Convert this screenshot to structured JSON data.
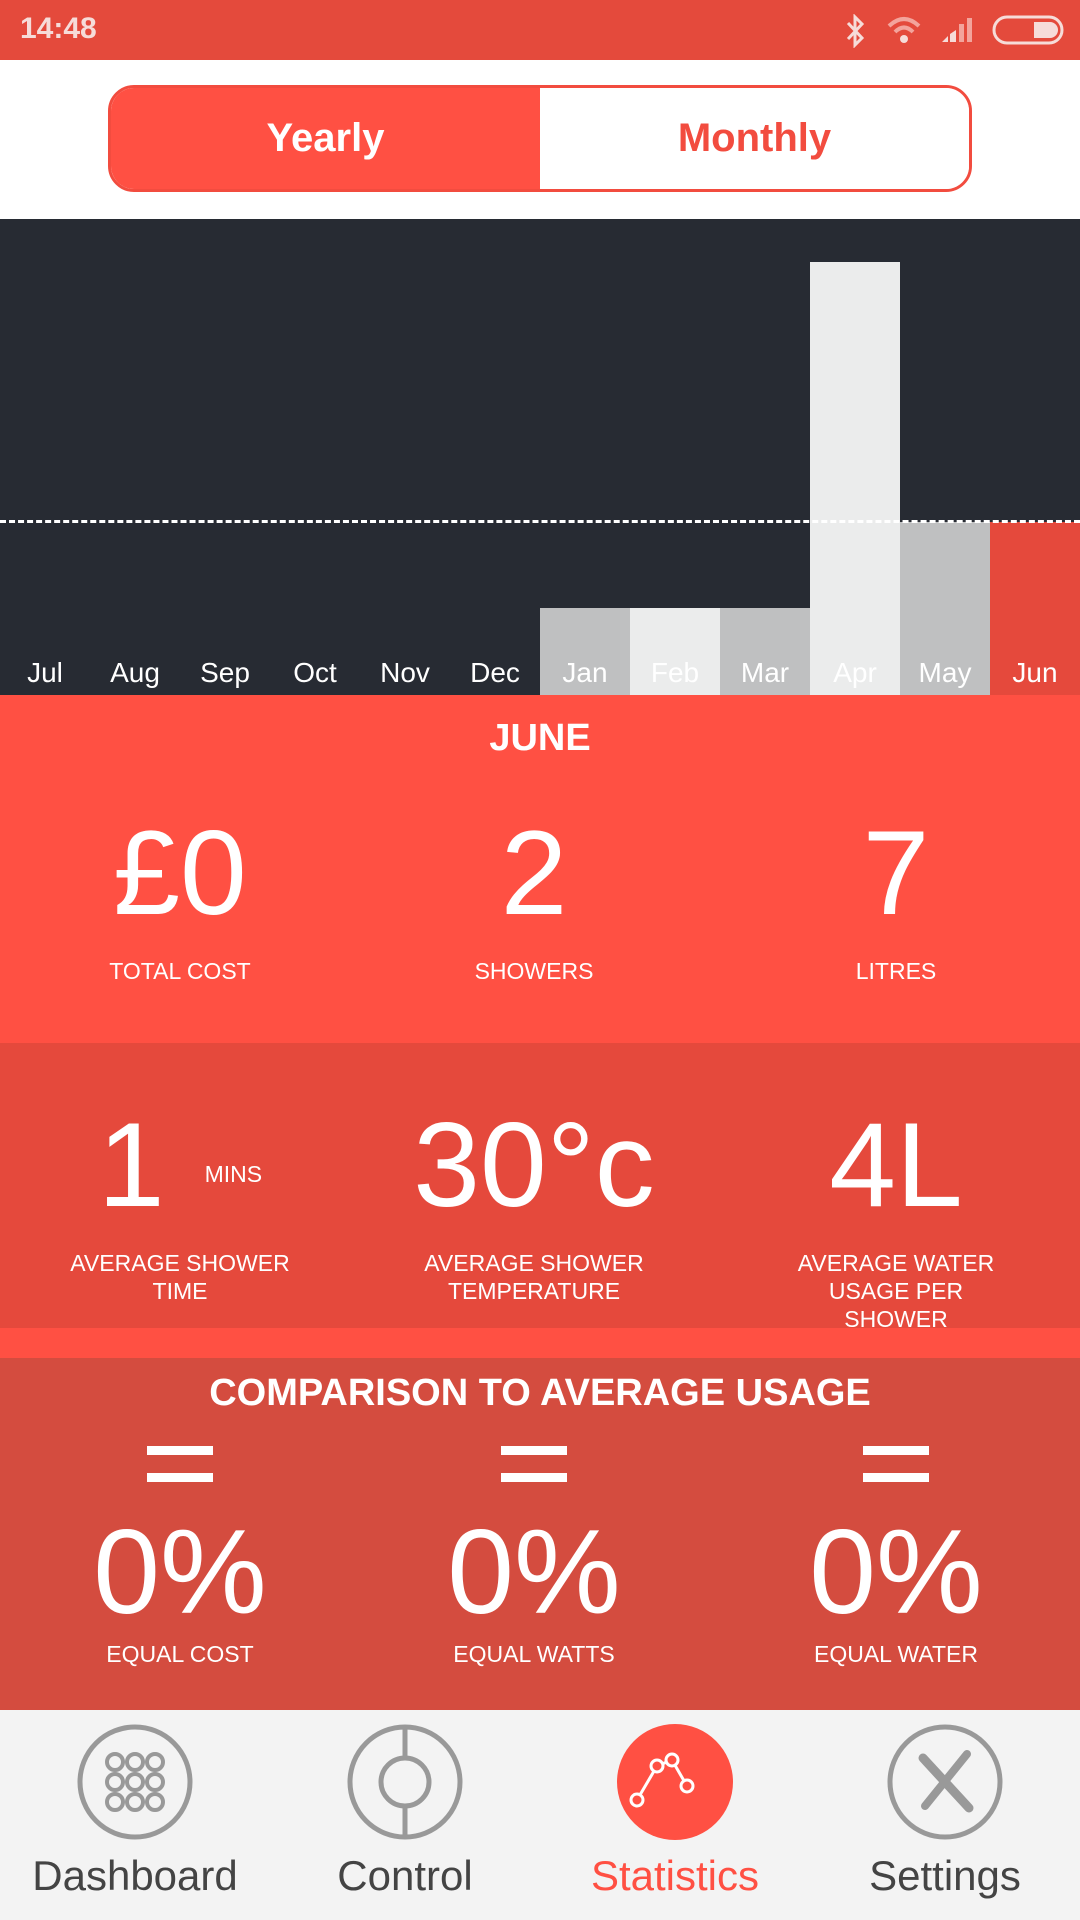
{
  "status_bar": {
    "time": "14:48",
    "icons": [
      "bluetooth-icon",
      "wifi-icon",
      "signal-icon",
      "battery-icon"
    ]
  },
  "toggle": {
    "yearly": "Yearly",
    "monthly": "Monthly",
    "selected": "Yearly"
  },
  "colors": {
    "accent": "#FF5043",
    "chart_bg": "#272B33",
    "bar_light": "#EBECEC",
    "bar_grey": "#BFC0C1"
  },
  "chart_data": {
    "type": "bar",
    "categories": [
      "Jul",
      "Aug",
      "Sep",
      "Oct",
      "Nov",
      "Dec",
      "Jan",
      "Feb",
      "Mar",
      "Apr",
      "May",
      "Jun"
    ],
    "values": [
      0,
      0,
      0,
      0,
      0,
      0,
      1,
      1,
      1,
      5,
      2,
      2
    ],
    "average_line": 2,
    "selected": "Jun",
    "ylim": [
      0,
      5.5
    ],
    "grid": false
  },
  "month_summary": {
    "title": "JUNE",
    "stats": [
      {
        "value": "£0",
        "label": "TOTAL COST"
      },
      {
        "value": "2",
        "label": "SHOWERS"
      },
      {
        "value": "7",
        "label": "LITRES"
      }
    ]
  },
  "averages": [
    {
      "value": "1",
      "unit": "MINS",
      "label": "AVERAGE SHOWER TIME"
    },
    {
      "value": "30°c",
      "unit": "",
      "label": "AVERAGE SHOWER TEMPERATURE"
    },
    {
      "value": "4L",
      "unit": "",
      "label": "AVERAGE WATER USAGE PER SHOWER"
    }
  ],
  "comparison": {
    "title": "COMPARISON TO AVERAGE USAGE",
    "items": [
      {
        "icon": "equals-icon",
        "value": "0%",
        "label": "EQUAL COST"
      },
      {
        "icon": "equals-icon",
        "value": "0%",
        "label": "EQUAL WATTS"
      },
      {
        "icon": "equals-icon",
        "value": "0%",
        "label": "EQUAL WATER"
      }
    ]
  },
  "nav": [
    {
      "label": "Dashboard"
    },
    {
      "label": "Control"
    },
    {
      "label": "Statistics",
      "active": true
    },
    {
      "label": "Settings"
    }
  ]
}
